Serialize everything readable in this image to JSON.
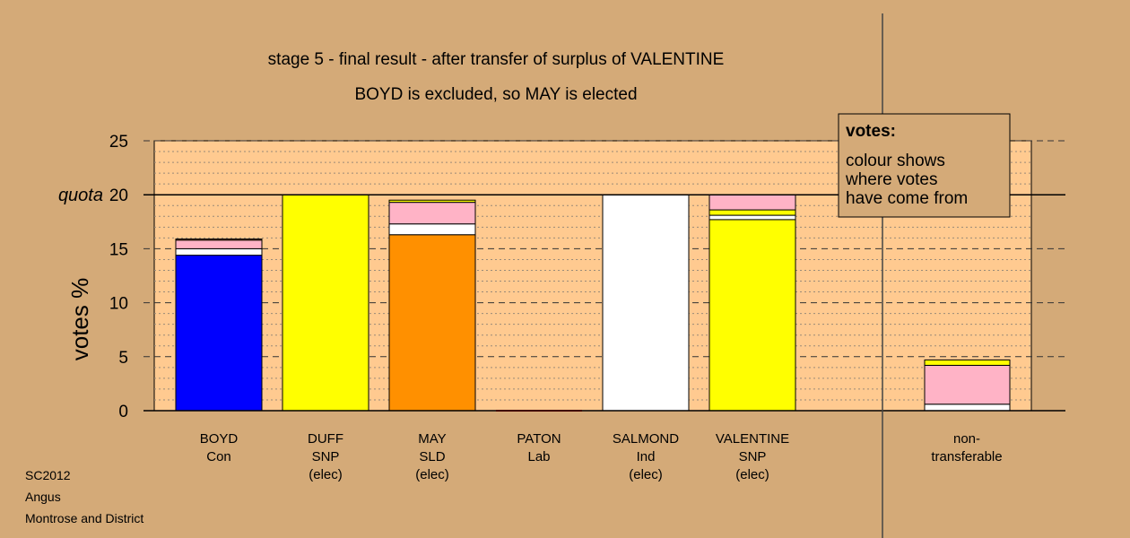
{
  "chart_data": {
    "type": "bar",
    "stacked": true,
    "title": "stage 5 - final result - after transfer of surplus of VALENTINE",
    "subtitle": "BOYD is excluded, so MAY is elected",
    "ylabel": "votes %",
    "ylim": [
      0,
      25
    ],
    "yticks": [
      "0",
      "5",
      "10",
      "15",
      "20",
      "25"
    ],
    "quota": {
      "label": "quota",
      "value": 20
    },
    "categories": [
      {
        "lines": [
          "BOYD",
          "Con"
        ]
      },
      {
        "lines": [
          "DUFF",
          "SNP",
          "(elec)"
        ]
      },
      {
        "lines": [
          "MAY",
          "SLD",
          "(elec)"
        ]
      },
      {
        "lines": [
          "PATON",
          "Lab"
        ]
      },
      {
        "lines": [
          "SALMOND",
          "Ind",
          "(elec)"
        ]
      },
      {
        "lines": [
          "VALENTINE",
          "SNP",
          "(elec)"
        ]
      }
    ],
    "nontransferable": {
      "lines": [
        "non-",
        "transferable"
      ]
    },
    "bars": [
      {
        "segments": [
          {
            "value": 14.4,
            "color": "#0000ff"
          },
          {
            "value": 0.6,
            "color": "#ffffff"
          },
          {
            "value": 0.8,
            "color": "#ffb3c6"
          },
          {
            "value": 0.1,
            "color": "#ff9000"
          }
        ]
      },
      {
        "segments": [
          {
            "value": 20.0,
            "color": "#ffff00"
          }
        ]
      },
      {
        "segments": [
          {
            "value": 16.3,
            "color": "#ff9000"
          },
          {
            "value": 1.0,
            "color": "#ffffff"
          },
          {
            "value": 2.0,
            "color": "#ffb3c6"
          },
          {
            "value": 0.2,
            "color": "#ffff00"
          }
        ]
      },
      {
        "segments": [
          {
            "value": 0.0,
            "color": "#ff0000"
          }
        ]
      },
      {
        "segments": [
          {
            "value": 20.0,
            "color": "#ffffff"
          }
        ]
      },
      {
        "segments": [
          {
            "value": 17.7,
            "color": "#ffff00"
          },
          {
            "value": 0.4,
            "color": "#ffffff"
          },
          {
            "value": 0.5,
            "color": "#ffff00"
          },
          {
            "value": 1.4,
            "color": "#ffb3c6"
          }
        ]
      }
    ],
    "nontransferable_bar": {
      "segments": [
        {
          "value": 0.6,
          "color": "#ffffff"
        },
        {
          "value": 3.6,
          "color": "#ffb3c6"
        },
        {
          "value": 0.5,
          "color": "#ffff00"
        }
      ]
    },
    "legend": {
      "title": "votes:",
      "lines": [
        "colour shows",
        "where votes",
        "have come from"
      ]
    },
    "colors": {
      "background": "#d4aa78",
      "plot_area": "#ffca90",
      "accent": "#000000"
    }
  },
  "footer": {
    "lines": [
      "SC2012",
      "Angus",
      "Montrose and District"
    ]
  }
}
